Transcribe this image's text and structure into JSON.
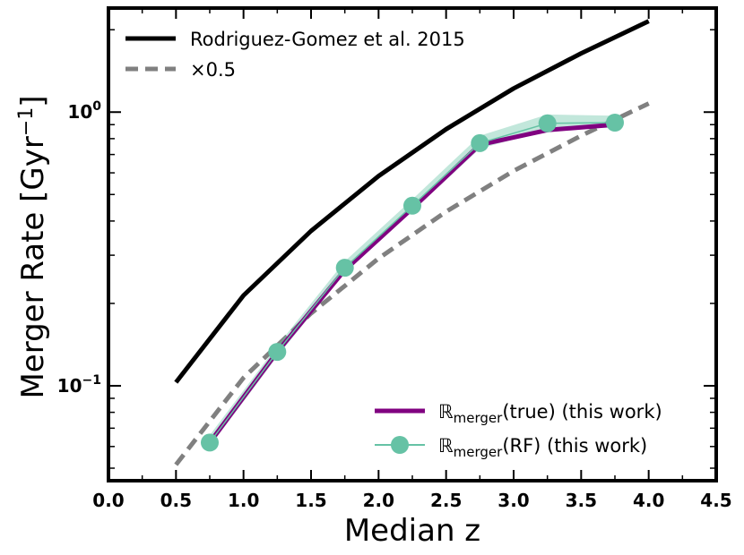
{
  "chart_data": {
    "type": "line",
    "xlabel": "Median z",
    "ylabel_text": "Merger Rate [Gyr",
    "ylabel_sup": "−1",
    "ylabel_close": "]",
    "xlim": [
      0.0,
      4.5
    ],
    "ylim": [
      0.045,
      2.4
    ],
    "yscale": "log",
    "x_ticks": [
      0.0,
      0.5,
      1.0,
      1.5,
      2.0,
      2.5,
      3.0,
      3.5,
      4.0,
      4.5
    ],
    "x_tick_labels": [
      "0.0",
      "0.5",
      "1.0",
      "1.5",
      "2.0",
      "2.5",
      "3.0",
      "3.5",
      "4.0",
      "4.5"
    ],
    "y_major_ticks": [
      {
        "value": 0.1,
        "base": "10",
        "exp": "−1"
      },
      {
        "value": 1.0,
        "base": "10",
        "exp": "0"
      }
    ],
    "series": [
      {
        "name": "Rodriguez-Gomez et al. 2015",
        "color": "#000000",
        "style": "solid",
        "x": [
          0.5,
          1.0,
          1.5,
          2.0,
          2.5,
          3.0,
          3.5,
          4.0
        ],
        "y": [
          0.103,
          0.214,
          0.368,
          0.584,
          0.866,
          1.22,
          1.64,
          2.15
        ]
      },
      {
        "name": "×0.5",
        "color": "#808080",
        "style": "dashed",
        "x": [
          0.5,
          1.0,
          1.5,
          2.0,
          2.5,
          3.0,
          3.5,
          4.0
        ],
        "y": [
          0.0515,
          0.107,
          0.184,
          0.292,
          0.433,
          0.61,
          0.82,
          1.075
        ]
      },
      {
        "name_sym": "ℝ",
        "name_sub": "merger",
        "name_rest": "(true) (this work)",
        "color": "#800080",
        "style": "solid",
        "x": [
          0.75,
          1.25,
          1.75,
          2.25,
          2.75,
          3.25,
          3.75
        ],
        "y": [
          0.062,
          0.133,
          0.265,
          0.445,
          0.76,
          0.86,
          0.9
        ]
      },
      {
        "name_sym": "ℝ",
        "name_sub": "merger",
        "name_rest": "(RF) (this work)",
        "color": "#66c2a5",
        "style": "markers",
        "x": [
          0.75,
          1.25,
          1.75,
          2.25,
          2.75,
          3.25,
          3.75
        ],
        "y": [
          0.062,
          0.133,
          0.27,
          0.455,
          0.77,
          0.91,
          0.915
        ],
        "band_low": [
          0.06,
          0.128,
          0.258,
          0.435,
          0.735,
          0.86,
          0.88
        ],
        "band_high": [
          0.066,
          0.14,
          0.285,
          0.48,
          0.82,
          0.98,
          0.97
        ]
      }
    ]
  }
}
